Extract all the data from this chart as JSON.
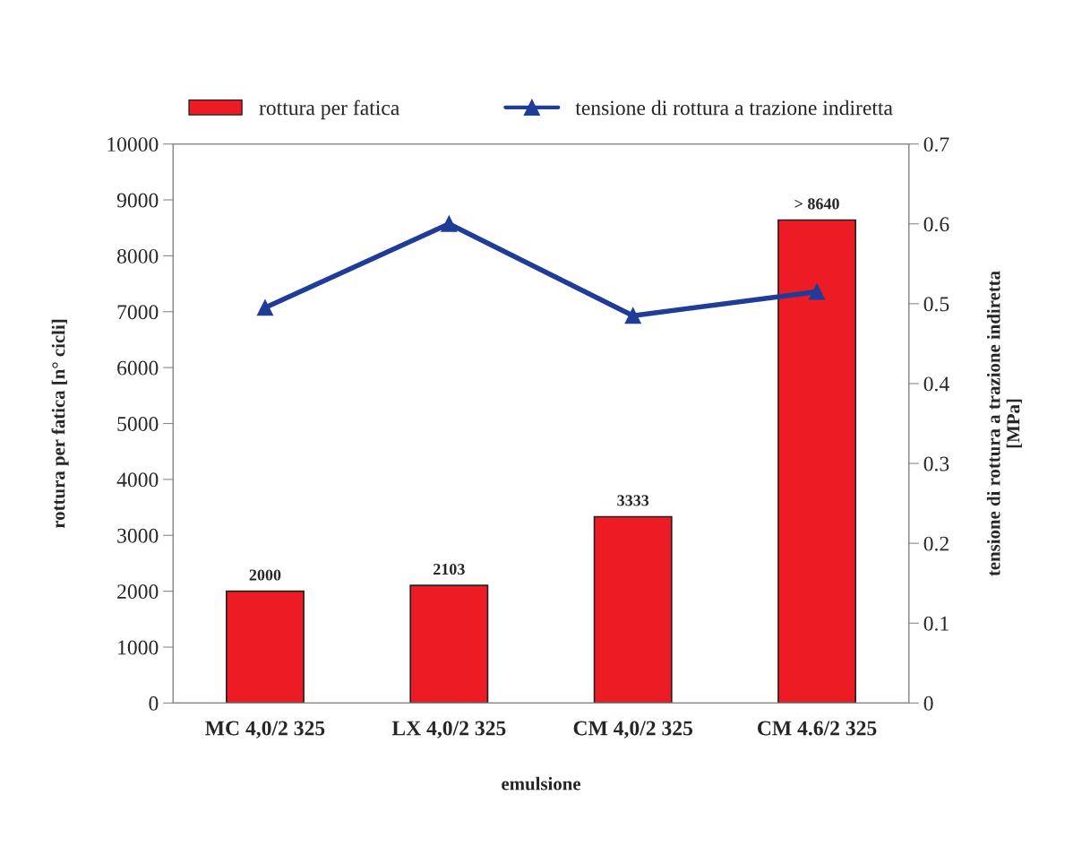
{
  "chart_data": {
    "type": "bar",
    "categories": [
      "MC 4,0/2 325",
      "LX 4,0/2 325",
      "CM 4,0/2 325",
      "CM 4.6/2 325"
    ],
    "xlabel": "emulsione",
    "ylabel": "rottura per fatica [n° cicli]",
    "y2label": "tensione di rottura a trazione indiretta\n[MPa]",
    "series": [
      {
        "name": "rottura per fatica",
        "color": "#ed1c24",
        "values": [
          2000,
          2103,
          3333,
          8640
        ],
        "value_labels": [
          "2000",
          "2103",
          "3333",
          "> 8640"
        ]
      },
      {
        "name": "tensione di rottura a trazione indiretta",
        "type": "line",
        "axis": "y2",
        "color": "#1f3c99",
        "marker": "triangle",
        "values": [
          0.495,
          0.6,
          0.485,
          0.515
        ]
      }
    ],
    "ylim": [
      0,
      10000
    ],
    "yticks": [
      0,
      1000,
      2000,
      3000,
      4000,
      5000,
      6000,
      7000,
      8000,
      9000,
      10000
    ],
    "y2lim": [
      0,
      0.7
    ],
    "y2ticks": [
      0,
      0.1,
      0.2,
      0.3,
      0.4,
      0.5,
      0.6,
      0.7
    ],
    "legend": "top",
    "grid": false
  }
}
